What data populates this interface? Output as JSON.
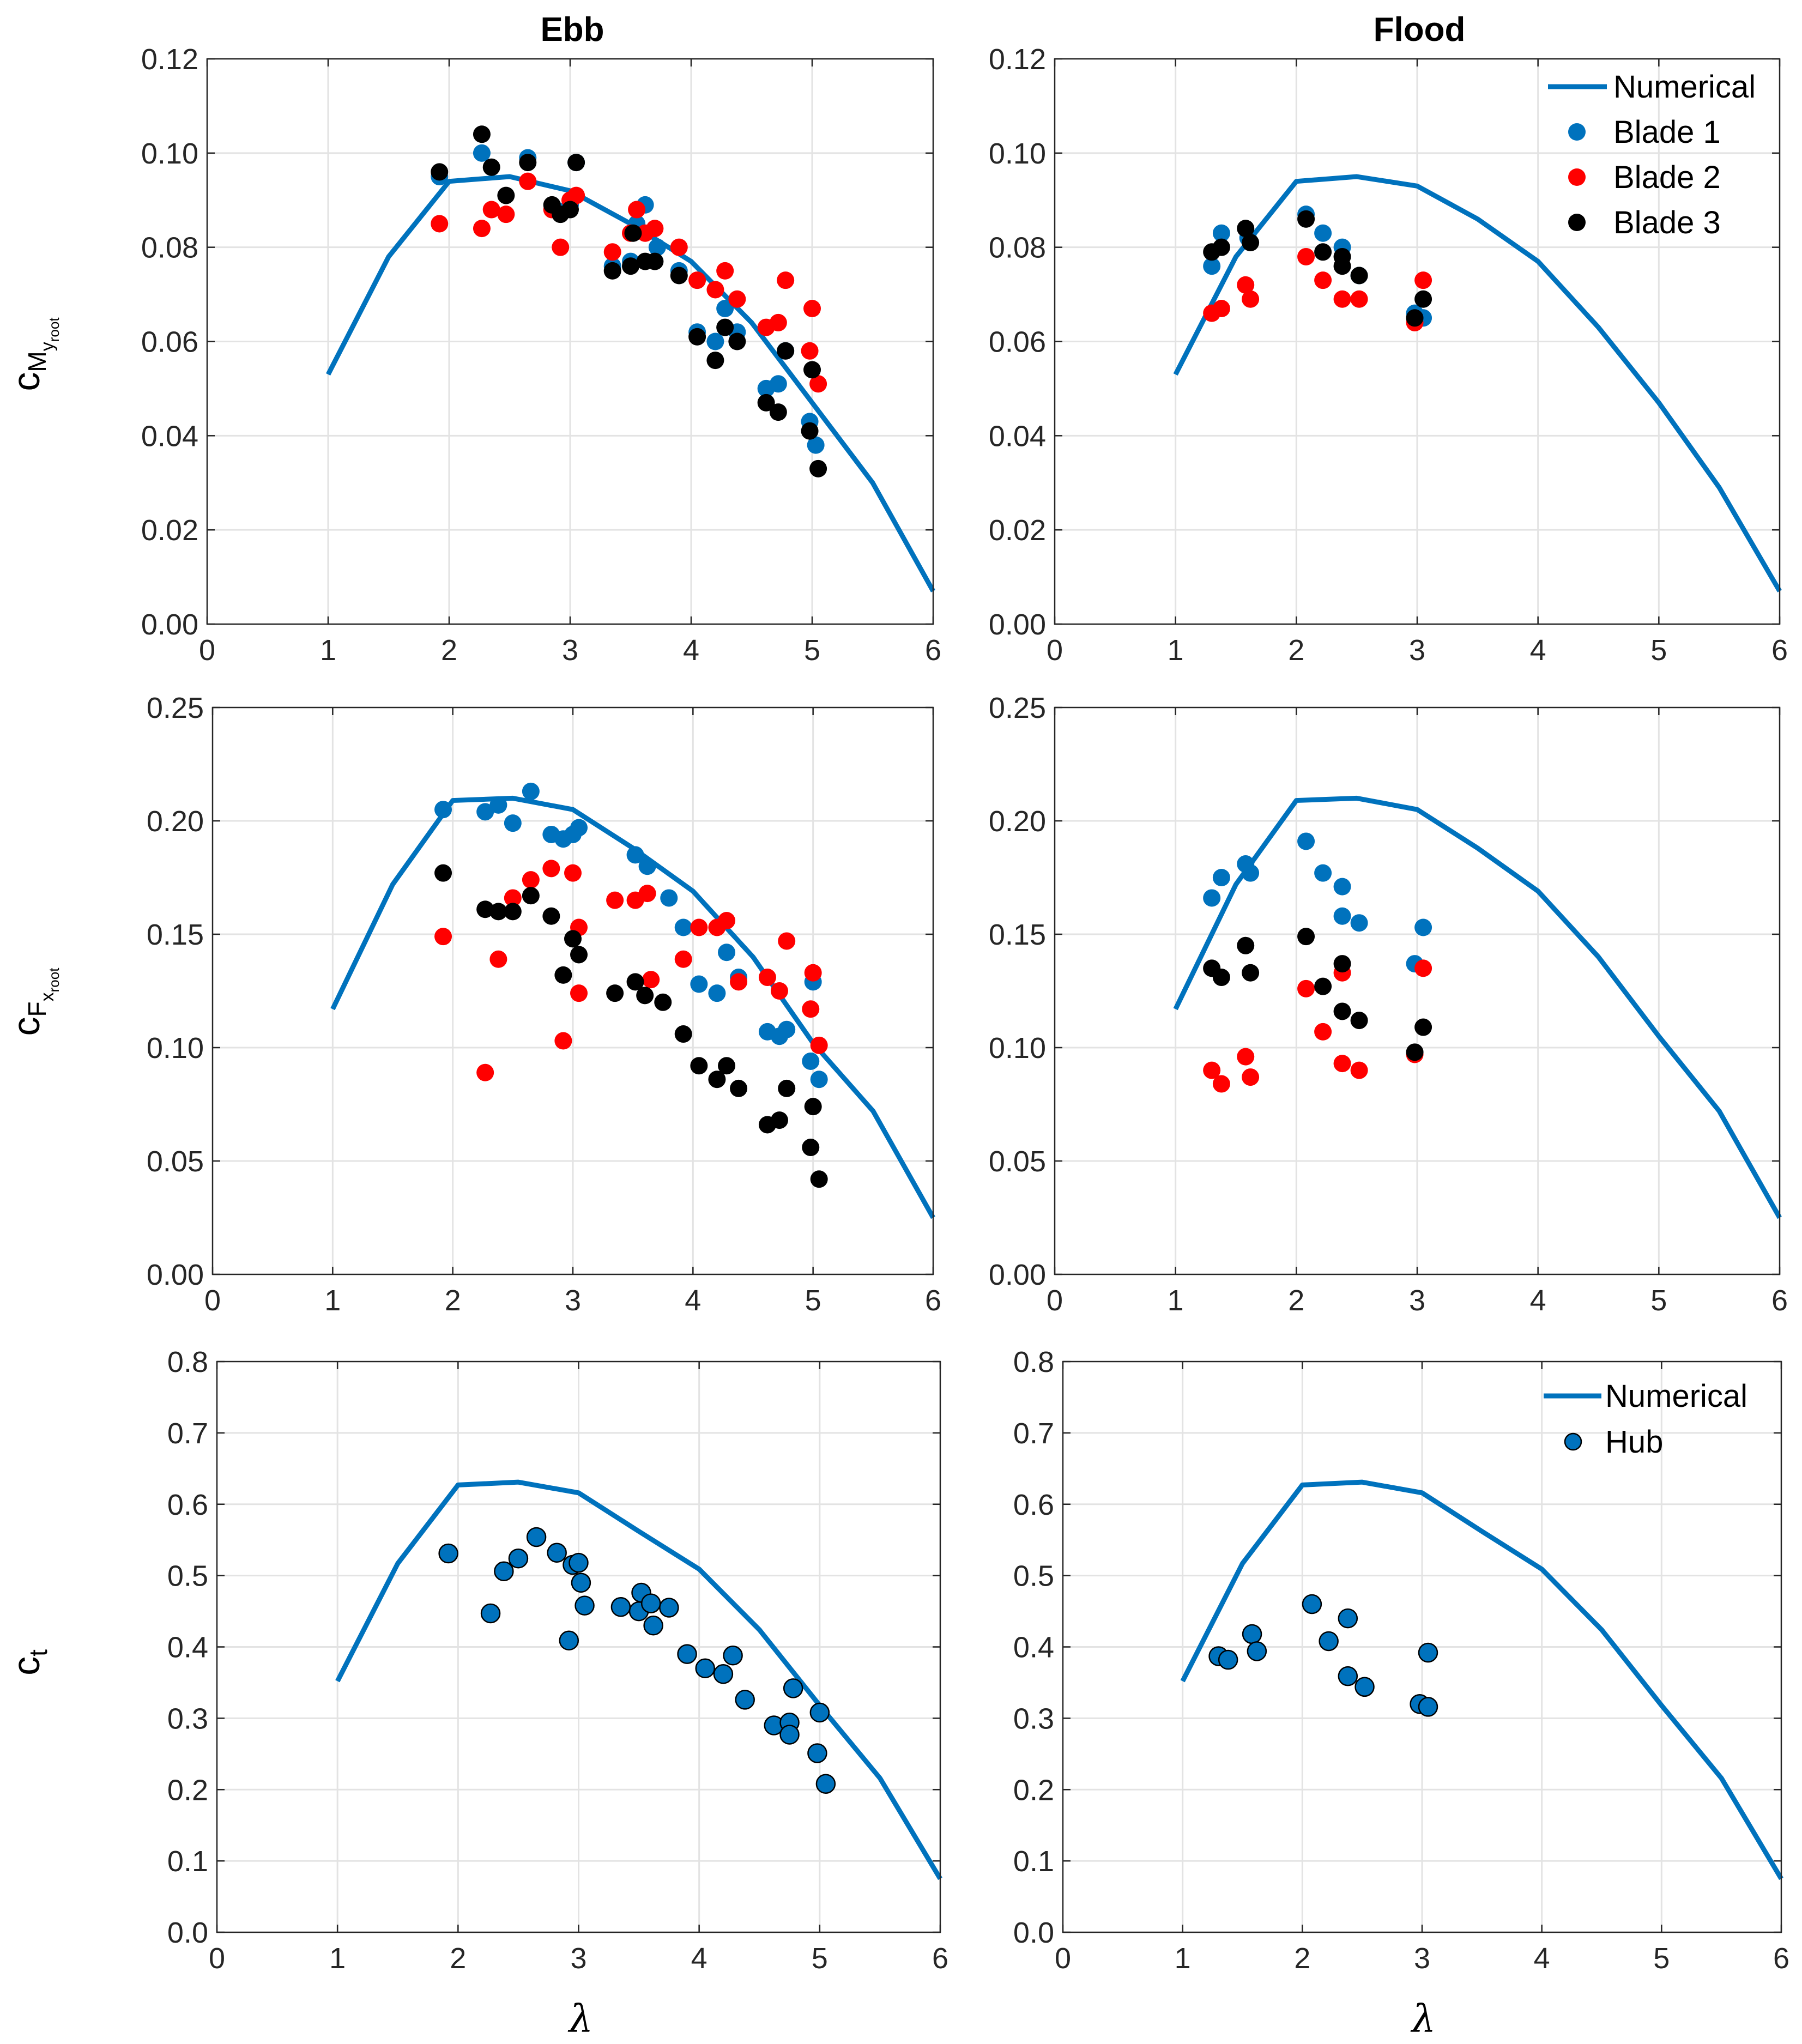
{
  "column_titles": {
    "ebb": "Ebb",
    "flood": "Flood"
  },
  "x_axis_symbol": "λ",
  "y_axis_labels": {
    "row1": {
      "main": "c",
      "sub": "M",
      "subsub": "y",
      "subsubsub": "root"
    },
    "row2": {
      "main": "c",
      "sub": "F",
      "subsub": "x",
      "subsubsub": "root"
    },
    "row3": {
      "main": "c",
      "sub": "t"
    }
  },
  "legends": {
    "blades": [
      "Numerical",
      "Blade 1",
      "Blade 2",
      "Blade 3"
    ],
    "hub": [
      "Numerical",
      "Hub"
    ]
  },
  "colors": {
    "numerical": "#0072BD",
    "blade1": "#0072BD",
    "blade2": "#FF0000",
    "blade3": "#000000",
    "hub": "#0072BD",
    "grid": "#E3E3E3",
    "axis": "#262626"
  },
  "chart_data": [
    {
      "id": "moment-ebb",
      "type": "scatter",
      "title": "Ebb",
      "xlabel": "",
      "ylabel": "cM_yroot",
      "xlim": [
        0,
        6
      ],
      "ylim": [
        0,
        0.12
      ],
      "xticks": [
        "0",
        "1",
        "2",
        "3",
        "4",
        "5",
        "6"
      ],
      "yticks": [
        "0.00",
        "0.02",
        "0.04",
        "0.06",
        "0.08",
        "0.10",
        "0.12"
      ],
      "grid": true,
      "legend": null,
      "line": {
        "name": "Numerical",
        "x": [
          1,
          1.5,
          2,
          2.5,
          3,
          3.5,
          4,
          4.5,
          5,
          5.5,
          6
        ],
        "y": [
          0.053,
          0.078,
          0.094,
          0.095,
          0.092,
          0.085,
          0.077,
          0.064,
          0.047,
          0.03,
          0.007
        ]
      },
      "series": [
        {
          "name": "Blade 1",
          "x": [
            1.92,
            2.27,
            2.65,
            2.88,
            3.0,
            3.05,
            3.35,
            3.5,
            3.55,
            3.62,
            3.72,
            3.9,
            4.05,
            4.2,
            4.28,
            4.38,
            4.62,
            4.72,
            4.78,
            4.98,
            5.03
          ],
          "y": [
            0.095,
            0.1,
            0.099,
            0.088,
            0.089,
            0.098,
            0.076,
            0.077,
            0.085,
            0.089,
            0.08,
            0.075,
            0.062,
            0.06,
            0.067,
            0.062,
            0.05,
            0.051,
            0.058,
            0.043,
            0.038
          ]
        },
        {
          "name": "Blade 2",
          "x": [
            1.92,
            2.27,
            2.35,
            2.47,
            2.65,
            2.85,
            2.92,
            3.0,
            3.05,
            3.35,
            3.5,
            3.55,
            3.62,
            3.7,
            3.9,
            4.05,
            4.2,
            4.28,
            4.38,
            4.62,
            4.72,
            4.78,
            4.98,
            5.0,
            5.05
          ],
          "y": [
            0.085,
            0.084,
            0.088,
            0.087,
            0.094,
            0.088,
            0.08,
            0.09,
            0.091,
            0.079,
            0.083,
            0.088,
            0.083,
            0.084,
            0.08,
            0.073,
            0.071,
            0.075,
            0.069,
            0.063,
            0.064,
            0.073,
            0.058,
            0.067,
            0.051
          ]
        },
        {
          "name": "Blade 3",
          "x": [
            1.92,
            2.27,
            2.35,
            2.47,
            2.65,
            2.85,
            2.92,
            3.0,
            3.05,
            3.35,
            3.5,
            3.52,
            3.62,
            3.7,
            3.9,
            4.05,
            4.2,
            4.28,
            4.38,
            4.62,
            4.72,
            4.78,
            4.98,
            5.0,
            5.05
          ],
          "y": [
            0.096,
            0.104,
            0.097,
            0.091,
            0.098,
            0.089,
            0.087,
            0.088,
            0.098,
            0.075,
            0.076,
            0.083,
            0.077,
            0.077,
            0.074,
            0.061,
            0.056,
            0.063,
            0.06,
            0.047,
            0.045,
            0.058,
            0.041,
            0.054,
            0.033
          ]
        }
      ]
    },
    {
      "id": "moment-flood",
      "type": "scatter",
      "title": "Flood",
      "xlabel": "",
      "ylabel": "",
      "xlim": [
        0,
        6
      ],
      "ylim": [
        0,
        0.12
      ],
      "xticks": [
        "0",
        "1",
        "2",
        "3",
        "4",
        "5",
        "6"
      ],
      "yticks": [
        "0.00",
        "0.02",
        "0.04",
        "0.06",
        "0.08",
        "0.10",
        "0.12"
      ],
      "grid": true,
      "legend": "top-right",
      "line": {
        "name": "Numerical",
        "x": [
          1,
          1.5,
          2,
          2.5,
          3,
          3.5,
          4,
          4.5,
          5,
          5.5,
          6
        ],
        "y": [
          0.053,
          0.078,
          0.094,
          0.095,
          0.093,
          0.086,
          0.077,
          0.063,
          0.047,
          0.029,
          0.007
        ]
      },
      "series": [
        {
          "name": "Blade 1",
          "x": [
            1.3,
            1.38,
            1.6,
            2.08,
            2.22,
            2.38,
            2.52,
            2.98,
            3.05
          ],
          "y": [
            0.076,
            0.083,
            0.082,
            0.087,
            0.083,
            0.08,
            0.074,
            0.066,
            0.065
          ]
        },
        {
          "name": "Blade 2",
          "x": [
            1.3,
            1.38,
            1.58,
            1.62,
            2.08,
            2.22,
            2.38,
            2.52,
            2.98,
            3.05
          ],
          "y": [
            0.066,
            0.067,
            0.072,
            0.069,
            0.078,
            0.073,
            0.069,
            0.069,
            0.064,
            0.073
          ]
        },
        {
          "name": "Blade 3",
          "x": [
            1.3,
            1.38,
            1.58,
            1.62,
            2.08,
            2.22,
            2.38,
            2.38,
            2.52,
            2.98,
            3.05
          ],
          "y": [
            0.079,
            0.08,
            0.084,
            0.081,
            0.086,
            0.079,
            0.078,
            0.076,
            0.074,
            0.065,
            0.069
          ]
        }
      ]
    },
    {
      "id": "force-ebb",
      "type": "scatter",
      "title": "",
      "xlabel": "",
      "ylabel": "cF_xroot",
      "xlim": [
        0,
        6
      ],
      "ylim": [
        0,
        0.25
      ],
      "xticks": [
        "0",
        "1",
        "2",
        "3",
        "4",
        "5",
        "6"
      ],
      "yticks": [
        "0.00",
        "0.05",
        "0.10",
        "0.15",
        "0.20",
        "0.25"
      ],
      "grid": true,
      "legend": null,
      "line": {
        "name": "Numerical",
        "x": [
          1,
          1.5,
          2,
          2.5,
          3,
          3.5,
          4,
          4.5,
          5,
          5.5,
          6
        ],
        "y": [
          0.117,
          0.172,
          0.209,
          0.21,
          0.205,
          0.188,
          0.169,
          0.14,
          0.102,
          0.072,
          0.025
        ]
      },
      "series": [
        {
          "name": "Blade 1",
          "x": [
            1.92,
            2.27,
            2.38,
            2.5,
            2.65,
            2.82,
            2.92,
            3.0,
            3.05,
            3.52,
            3.62,
            3.8,
            3.92,
            4.05,
            4.2,
            4.28,
            4.38,
            4.62,
            4.72,
            4.78,
            4.98,
            5.0,
            5.05
          ],
          "y": [
            0.205,
            0.204,
            0.207,
            0.199,
            0.213,
            0.194,
            0.192,
            0.194,
            0.197,
            0.185,
            0.18,
            0.166,
            0.153,
            0.128,
            0.124,
            0.142,
            0.131,
            0.107,
            0.105,
            0.108,
            0.094,
            0.129,
            0.086
          ]
        },
        {
          "name": "Blade 2",
          "x": [
            1.92,
            2.27,
            2.38,
            2.5,
            2.65,
            2.82,
            2.92,
            3.0,
            3.05,
            3.05,
            3.35,
            3.52,
            3.62,
            3.65,
            3.92,
            4.05,
            4.2,
            4.28,
            4.38,
            4.62,
            4.72,
            4.78,
            4.98,
            5.0,
            5.05
          ],
          "y": [
            0.149,
            0.089,
            0.139,
            0.166,
            0.174,
            0.179,
            0.103,
            0.177,
            0.153,
            0.124,
            0.165,
            0.165,
            0.168,
            0.13,
            0.139,
            0.153,
            0.153,
            0.156,
            0.129,
            0.131,
            0.125,
            0.147,
            0.117,
            0.133,
            0.101
          ]
        },
        {
          "name": "Blade 3",
          "x": [
            1.92,
            2.27,
            2.38,
            2.5,
            2.65,
            2.82,
            2.92,
            3.0,
            3.05,
            3.35,
            3.52,
            3.6,
            3.75,
            3.92,
            4.05,
            4.2,
            4.28,
            4.38,
            4.62,
            4.72,
            4.78,
            4.98,
            5.0,
            5.05
          ],
          "y": [
            0.177,
            0.161,
            0.16,
            0.16,
            0.167,
            0.158,
            0.132,
            0.148,
            0.141,
            0.124,
            0.129,
            0.123,
            0.12,
            0.106,
            0.092,
            0.086,
            0.092,
            0.082,
            0.066,
            0.068,
            0.082,
            0.056,
            0.074,
            0.042
          ]
        }
      ]
    },
    {
      "id": "force-flood",
      "type": "scatter",
      "title": "",
      "xlabel": "",
      "ylabel": "",
      "xlim": [
        0,
        6
      ],
      "ylim": [
        0,
        0.25
      ],
      "xticks": [
        "0",
        "1",
        "2",
        "3",
        "4",
        "5",
        "6"
      ],
      "yticks": [
        "0.00",
        "0.05",
        "0.10",
        "0.15",
        "0.20",
        "0.25"
      ],
      "grid": true,
      "legend": null,
      "line": {
        "name": "Numerical",
        "x": [
          1,
          1.5,
          2,
          2.5,
          3,
          3.5,
          4,
          4.5,
          5,
          5.5,
          6
        ],
        "y": [
          0.117,
          0.172,
          0.209,
          0.21,
          0.205,
          0.188,
          0.169,
          0.14,
          0.105,
          0.072,
          0.025
        ]
      },
      "series": [
        {
          "name": "Blade 1",
          "x": [
            1.3,
            1.38,
            1.58,
            1.62,
            2.08,
            2.22,
            2.38,
            2.38,
            2.52,
            2.98,
            3.05
          ],
          "y": [
            0.166,
            0.175,
            0.181,
            0.177,
            0.191,
            0.177,
            0.171,
            0.158,
            0.155,
            0.137,
            0.153
          ]
        },
        {
          "name": "Blade 2",
          "x": [
            1.3,
            1.38,
            1.58,
            1.62,
            2.08,
            2.22,
            2.38,
            2.38,
            2.52,
            2.98,
            3.05
          ],
          "y": [
            0.09,
            0.084,
            0.096,
            0.087,
            0.126,
            0.107,
            0.133,
            0.093,
            0.09,
            0.097,
            0.135
          ]
        },
        {
          "name": "Blade 3",
          "x": [
            1.3,
            1.38,
            1.58,
            1.62,
            2.08,
            2.22,
            2.38,
            2.38,
            2.52,
            2.98,
            3.05
          ],
          "y": [
            0.135,
            0.131,
            0.145,
            0.133,
            0.149,
            0.127,
            0.137,
            0.116,
            0.112,
            0.098,
            0.109
          ]
        }
      ]
    },
    {
      "id": "thrust-ebb",
      "type": "scatter",
      "title": "",
      "xlabel": "λ",
      "ylabel": "ct",
      "xlim": [
        0,
        6
      ],
      "ylim": [
        0,
        0.8
      ],
      "xticks": [
        "0",
        "1",
        "2",
        "3",
        "4",
        "5",
        "6"
      ],
      "yticks": [
        "0.0",
        "0.1",
        "0.2",
        "0.3",
        "0.4",
        "0.5",
        "0.6",
        "0.7",
        "0.8"
      ],
      "grid": true,
      "legend": null,
      "line": {
        "name": "Numerical",
        "x": [
          1,
          1.5,
          2,
          2.5,
          3,
          3.5,
          4,
          4.5,
          5,
          5.5,
          6
        ],
        "y": [
          0.352,
          0.517,
          0.627,
          0.631,
          0.616,
          0.562,
          0.509,
          0.424,
          0.318,
          0.216,
          0.075
        ]
      },
      "series": [
        {
          "name": "Hub",
          "x": [
            1.92,
            2.27,
            2.38,
            2.5,
            2.65,
            2.82,
            2.92,
            2.95,
            3.0,
            3.02,
            3.05,
            3.35,
            3.5,
            3.52,
            3.6,
            3.62,
            3.75,
            3.9,
            4.05,
            4.2,
            4.28,
            4.38,
            4.62,
            4.75,
            4.75,
            4.78,
            4.98,
            5.0,
            5.05
          ],
          "y": [
            0.531,
            0.447,
            0.506,
            0.524,
            0.554,
            0.532,
            0.409,
            0.515,
            0.518,
            0.49,
            0.458,
            0.456,
            0.45,
            0.476,
            0.461,
            0.43,
            0.455,
            0.39,
            0.37,
            0.362,
            0.388,
            0.326,
            0.29,
            0.294,
            0.277,
            0.342,
            0.251,
            0.308,
            0.208
          ]
        }
      ]
    },
    {
      "id": "thrust-flood",
      "type": "scatter",
      "title": "",
      "xlabel": "λ",
      "ylabel": "",
      "xlim": [
        0,
        6
      ],
      "ylim": [
        0,
        0.8
      ],
      "xticks": [
        "0",
        "1",
        "2",
        "3",
        "4",
        "5",
        "6"
      ],
      "yticks": [
        "0.0",
        "0.1",
        "0.2",
        "0.3",
        "0.4",
        "0.5",
        "0.6",
        "0.7",
        "0.8"
      ],
      "grid": true,
      "legend": "top-right",
      "line": {
        "name": "Numerical",
        "x": [
          1,
          1.5,
          2,
          2.5,
          3,
          3.5,
          4,
          4.5,
          5,
          5.5,
          6
        ],
        "y": [
          0.352,
          0.517,
          0.627,
          0.631,
          0.616,
          0.562,
          0.509,
          0.424,
          0.318,
          0.216,
          0.075
        ]
      },
      "series": [
        {
          "name": "Hub",
          "x": [
            1.3,
            1.38,
            1.58,
            1.62,
            2.08,
            2.22,
            2.38,
            2.38,
            2.52,
            2.98,
            3.05,
            3.05
          ],
          "y": [
            0.387,
            0.382,
            0.418,
            0.394,
            0.46,
            0.408,
            0.44,
            0.359,
            0.344,
            0.32,
            0.392,
            0.316
          ]
        }
      ]
    }
  ]
}
